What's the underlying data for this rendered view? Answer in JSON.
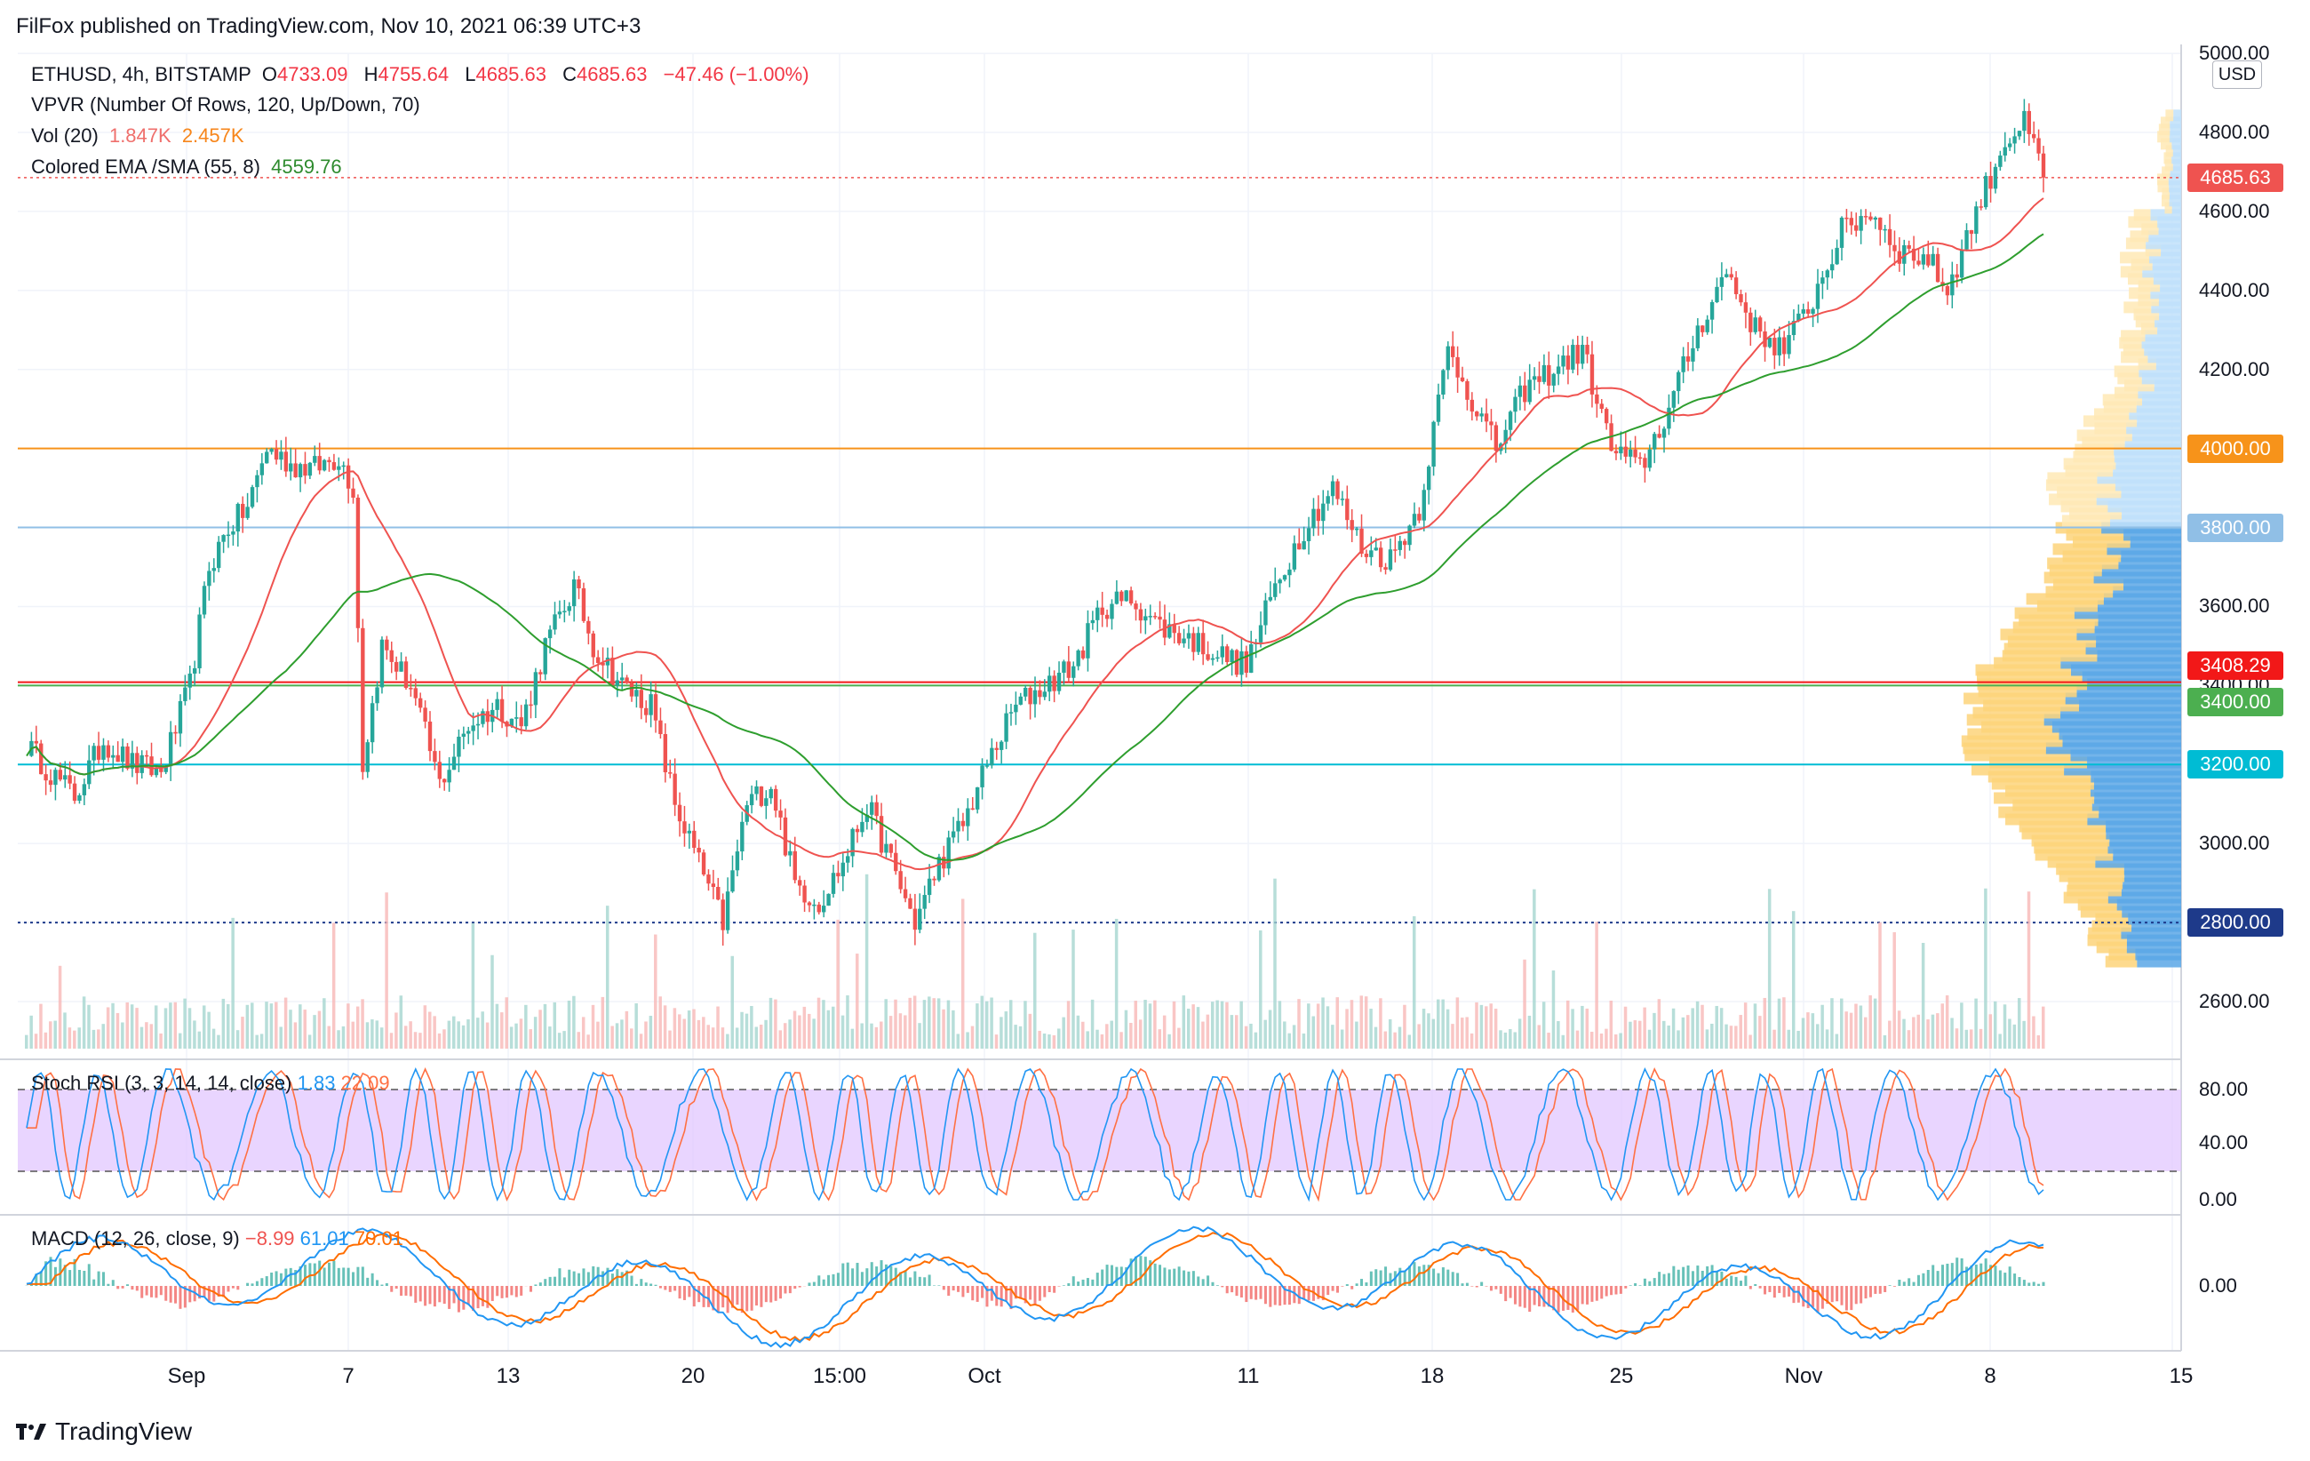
{
  "header": {
    "text": "FilFox published on TradingView.com, Nov 10, 2021 06:39 UTC+3"
  },
  "legend": {
    "symbol": "ETHUSD, 4h, BITSTAMP",
    "o_label": "O",
    "o_value": "4733.09",
    "h_label": "H",
    "h_value": "4755.64",
    "l_label": "L",
    "l_value": "4685.63",
    "c_label": "C",
    "c_value": "4685.63",
    "change": "−47.46 (−1.00%)",
    "vpvr": "VPVR (Number Of Rows, 120, Up/Down, 70)",
    "vol_label": "Vol (20)",
    "vol_value1": "1.847K",
    "vol_value2": "2.457K",
    "ema_label": "Colored EMA /SMA (55, 8)",
    "ema_value": "4559.76"
  },
  "stoch": {
    "label": "Stoch RSI (3, 3, 14, 14, close)",
    "k": "1.83",
    "d": "22.09",
    "ticks": [
      "80.00",
      "40.00",
      "0.00"
    ]
  },
  "macd": {
    "label": "MACD (12, 26, close, 9)",
    "hist": "−8.99",
    "macd": "61.01",
    "signal": "70.01",
    "tick": "0.00"
  },
  "y_axis": {
    "currency": "USD",
    "ticks": [
      "5000.00",
      "4800.00",
      "4600.00",
      "4400.00",
      "4200.00",
      "4000.00",
      "3800.00",
      "3600.00",
      "3400.00",
      "3200.00",
      "3000.00",
      "2800.00",
      "2600.00"
    ]
  },
  "price_tags": [
    {
      "label": "4685.63",
      "color": "#ef5350"
    },
    {
      "label": "4000.00",
      "color": "#f7931a"
    },
    {
      "label": "3800.00",
      "color": "#90bfe6"
    },
    {
      "label": "3408.29",
      "color": "#f21818"
    },
    {
      "label": "3400.00",
      "color": "#4caf50"
    },
    {
      "label": "3200.00",
      "color": "#00bcd4"
    },
    {
      "label": "2800.00",
      "color": "#1e3a8a"
    }
  ],
  "x_axis": {
    "ticks": [
      "Sep",
      "7",
      "13",
      "20",
      "15:00",
      "Oct",
      "11",
      "18",
      "25",
      "Nov",
      "8",
      "15"
    ]
  },
  "footer": {
    "brand": "TradingView"
  },
  "colors": {
    "up": "#26a69a",
    "down": "#ef5350",
    "ema": "#2e9e2e",
    "sma": "#ef5350",
    "stoch_k": "#2196f3",
    "stoch_d": "#ff7043",
    "macd": "#2196f3",
    "signal": "#ff6d00",
    "stoch_band": "#e1c7ff"
  },
  "chart_data": {
    "type": "candlestick",
    "symbol": "ETHUSD",
    "timeframe": "4h",
    "ylim": [
      2500,
      5000
    ],
    "horizontal_levels": [
      4000,
      3800,
      3408.29,
      3400,
      3200,
      2800
    ],
    "last_price": 4685.63,
    "path_points": [
      [
        0,
        3250
      ],
      [
        5,
        3180
      ],
      [
        10,
        3120
      ],
      [
        16,
        3260
      ],
      [
        22,
        3200
      ],
      [
        28,
        3180
      ],
      [
        34,
        3400
      ],
      [
        38,
        3700
      ],
      [
        42,
        3800
      ],
      [
        46,
        3850
      ],
      [
        50,
        4000
      ],
      [
        55,
        3960
      ],
      [
        60,
        3950
      ],
      [
        65,
        3980
      ],
      [
        68,
        3900
      ],
      [
        70,
        3200
      ],
      [
        74,
        3500
      ],
      [
        80,
        3400
      ],
      [
        86,
        3150
      ],
      [
        92,
        3300
      ],
      [
        98,
        3350
      ],
      [
        103,
        3300
      ],
      [
        108,
        3500
      ],
      [
        114,
        3650
      ],
      [
        118,
        3500
      ],
      [
        124,
        3400
      ],
      [
        130,
        3350
      ],
      [
        135,
        3100
      ],
      [
        140,
        2950
      ],
      [
        145,
        2800
      ],
      [
        150,
        3100
      ],
      [
        155,
        3150
      ],
      [
        160,
        2900
      ],
      [
        165,
        2850
      ],
      [
        170,
        2950
      ],
      [
        175,
        3100
      ],
      [
        180,
        2950
      ],
      [
        185,
        2800
      ],
      [
        190,
        2950
      ],
      [
        195,
        3050
      ],
      [
        200,
        3200
      ],
      [
        206,
        3350
      ],
      [
        212,
        3400
      ],
      [
        218,
        3450
      ],
      [
        224,
        3600
      ],
      [
        230,
        3620
      ],
      [
        236,
        3550
      ],
      [
        242,
        3520
      ],
      [
        248,
        3480
      ],
      [
        254,
        3450
      ],
      [
        260,
        3650
      ],
      [
        266,
        3800
      ],
      [
        272,
        3900
      ],
      [
        278,
        3750
      ],
      [
        284,
        3720
      ],
      [
        290,
        3850
      ],
      [
        296,
        4250
      ],
      [
        300,
        4150
      ],
      [
        306,
        4000
      ],
      [
        312,
        4150
      ],
      [
        318,
        4200
      ],
      [
        324,
        4250
      ],
      [
        330,
        4000
      ],
      [
        336,
        3950
      ],
      [
        342,
        4100
      ],
      [
        348,
        4300
      ],
      [
        354,
        4450
      ],
      [
        360,
        4300
      ],
      [
        366,
        4250
      ],
      [
        372,
        4380
      ],
      [
        378,
        4550
      ],
      [
        384,
        4600
      ],
      [
        390,
        4500
      ],
      [
        396,
        4480
      ],
      [
        400,
        4400
      ],
      [
        406,
        4600
      ],
      [
        412,
        4780
      ],
      [
        416,
        4820
      ],
      [
        420,
        4700
      ]
    ]
  }
}
